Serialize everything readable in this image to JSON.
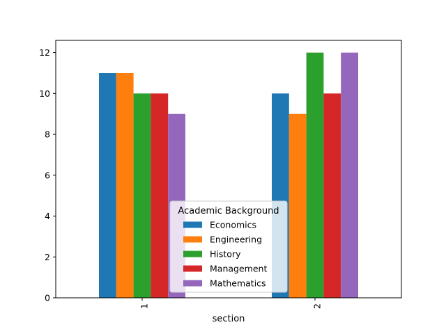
{
  "chart_data": {
    "type": "bar",
    "categories": [
      "1",
      "2"
    ],
    "series": [
      {
        "name": "Economics",
        "values": [
          11,
          10
        ],
        "color": "#1f77b4"
      },
      {
        "name": "Engineering",
        "values": [
          11,
          9
        ],
        "color": "#ff7f0e"
      },
      {
        "name": "History",
        "values": [
          10,
          12
        ],
        "color": "#2ca02c"
      },
      {
        "name": "Management",
        "values": [
          10,
          10
        ],
        "color": "#d62728"
      },
      {
        "name": "Mathematics",
        "values": [
          9,
          12
        ],
        "color": "#9467bd"
      }
    ],
    "title": "",
    "xlabel": "section",
    "ylabel": "",
    "ylim": [
      0,
      12.6
    ],
    "yticks": [
      0,
      2,
      4,
      6,
      8,
      10,
      12
    ],
    "legend": {
      "title": "Academic Background",
      "placement": "lower-center"
    },
    "grid": false
  }
}
